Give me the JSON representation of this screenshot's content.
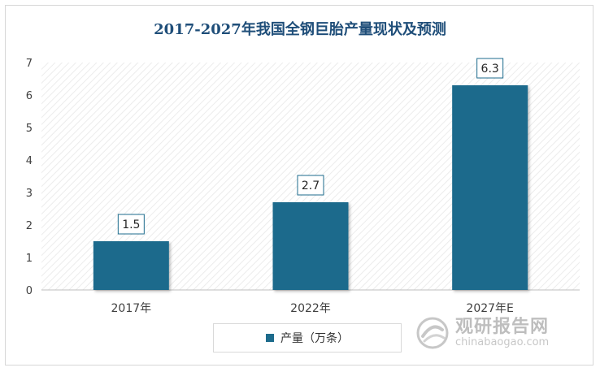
{
  "chart_data": {
    "type": "bar",
    "title": "2017-2027年我国全钢巨胎产量现状及预测",
    "categories": [
      "2017年",
      "2022年",
      "2027年E"
    ],
    "series": [
      {
        "name": "产量（万条）",
        "values": [
          1.5,
          2.7,
          6.3
        ],
        "color": "#1d6b8c"
      }
    ],
    "data_labels": [
      "1.5",
      "2.7",
      "6.3"
    ],
    "ylim": [
      0,
      7
    ],
    "yticks": [
      "0",
      "1",
      "2",
      "3",
      "4",
      "5",
      "6",
      "7"
    ],
    "legend": "bottom",
    "grid": false
  },
  "watermark": {
    "name_cn": "观研报告网",
    "url": "chinabaogao.com",
    "logo_icon": "swirl-logo-icon"
  }
}
